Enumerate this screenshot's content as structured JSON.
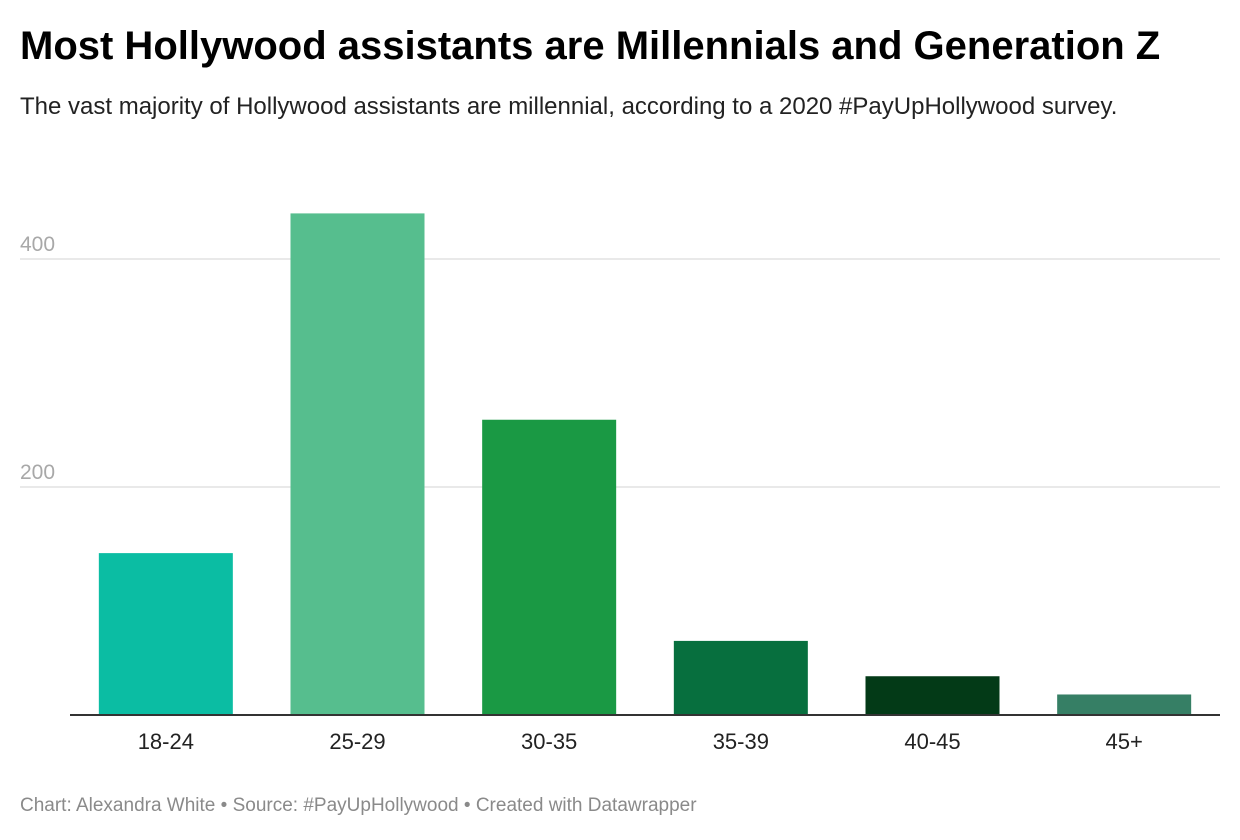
{
  "header": {
    "title": "Most Hollywood assistants are Millennials and Generation Z",
    "subtitle": "The vast majority of Hollywood assistants are millennial, according to a 2020 #PayUpHollywood survey."
  },
  "footer": {
    "credit": "Chart: Alexandra White",
    "separator1": " • ",
    "source": "Source: #PayUpHollywood",
    "separator2": " • ",
    "created": "Created with Datawrapper"
  },
  "chart_data": {
    "type": "bar",
    "title": "Most Hollywood assistants are Millennials and Generation Z",
    "categories": [
      "18-24",
      "25-29",
      "30-35",
      "35-39",
      "40-45",
      "45+"
    ],
    "values": [
      142,
      440,
      259,
      65,
      34,
      18
    ],
    "colors": [
      "#0bbda3",
      "#56be8e",
      "#1a9944",
      "#076f3e",
      "#033a17",
      "#367f65"
    ],
    "yticks": [
      200,
      400
    ],
    "ylim": [
      0,
      480
    ],
    "grid": true,
    "legend": "none"
  }
}
